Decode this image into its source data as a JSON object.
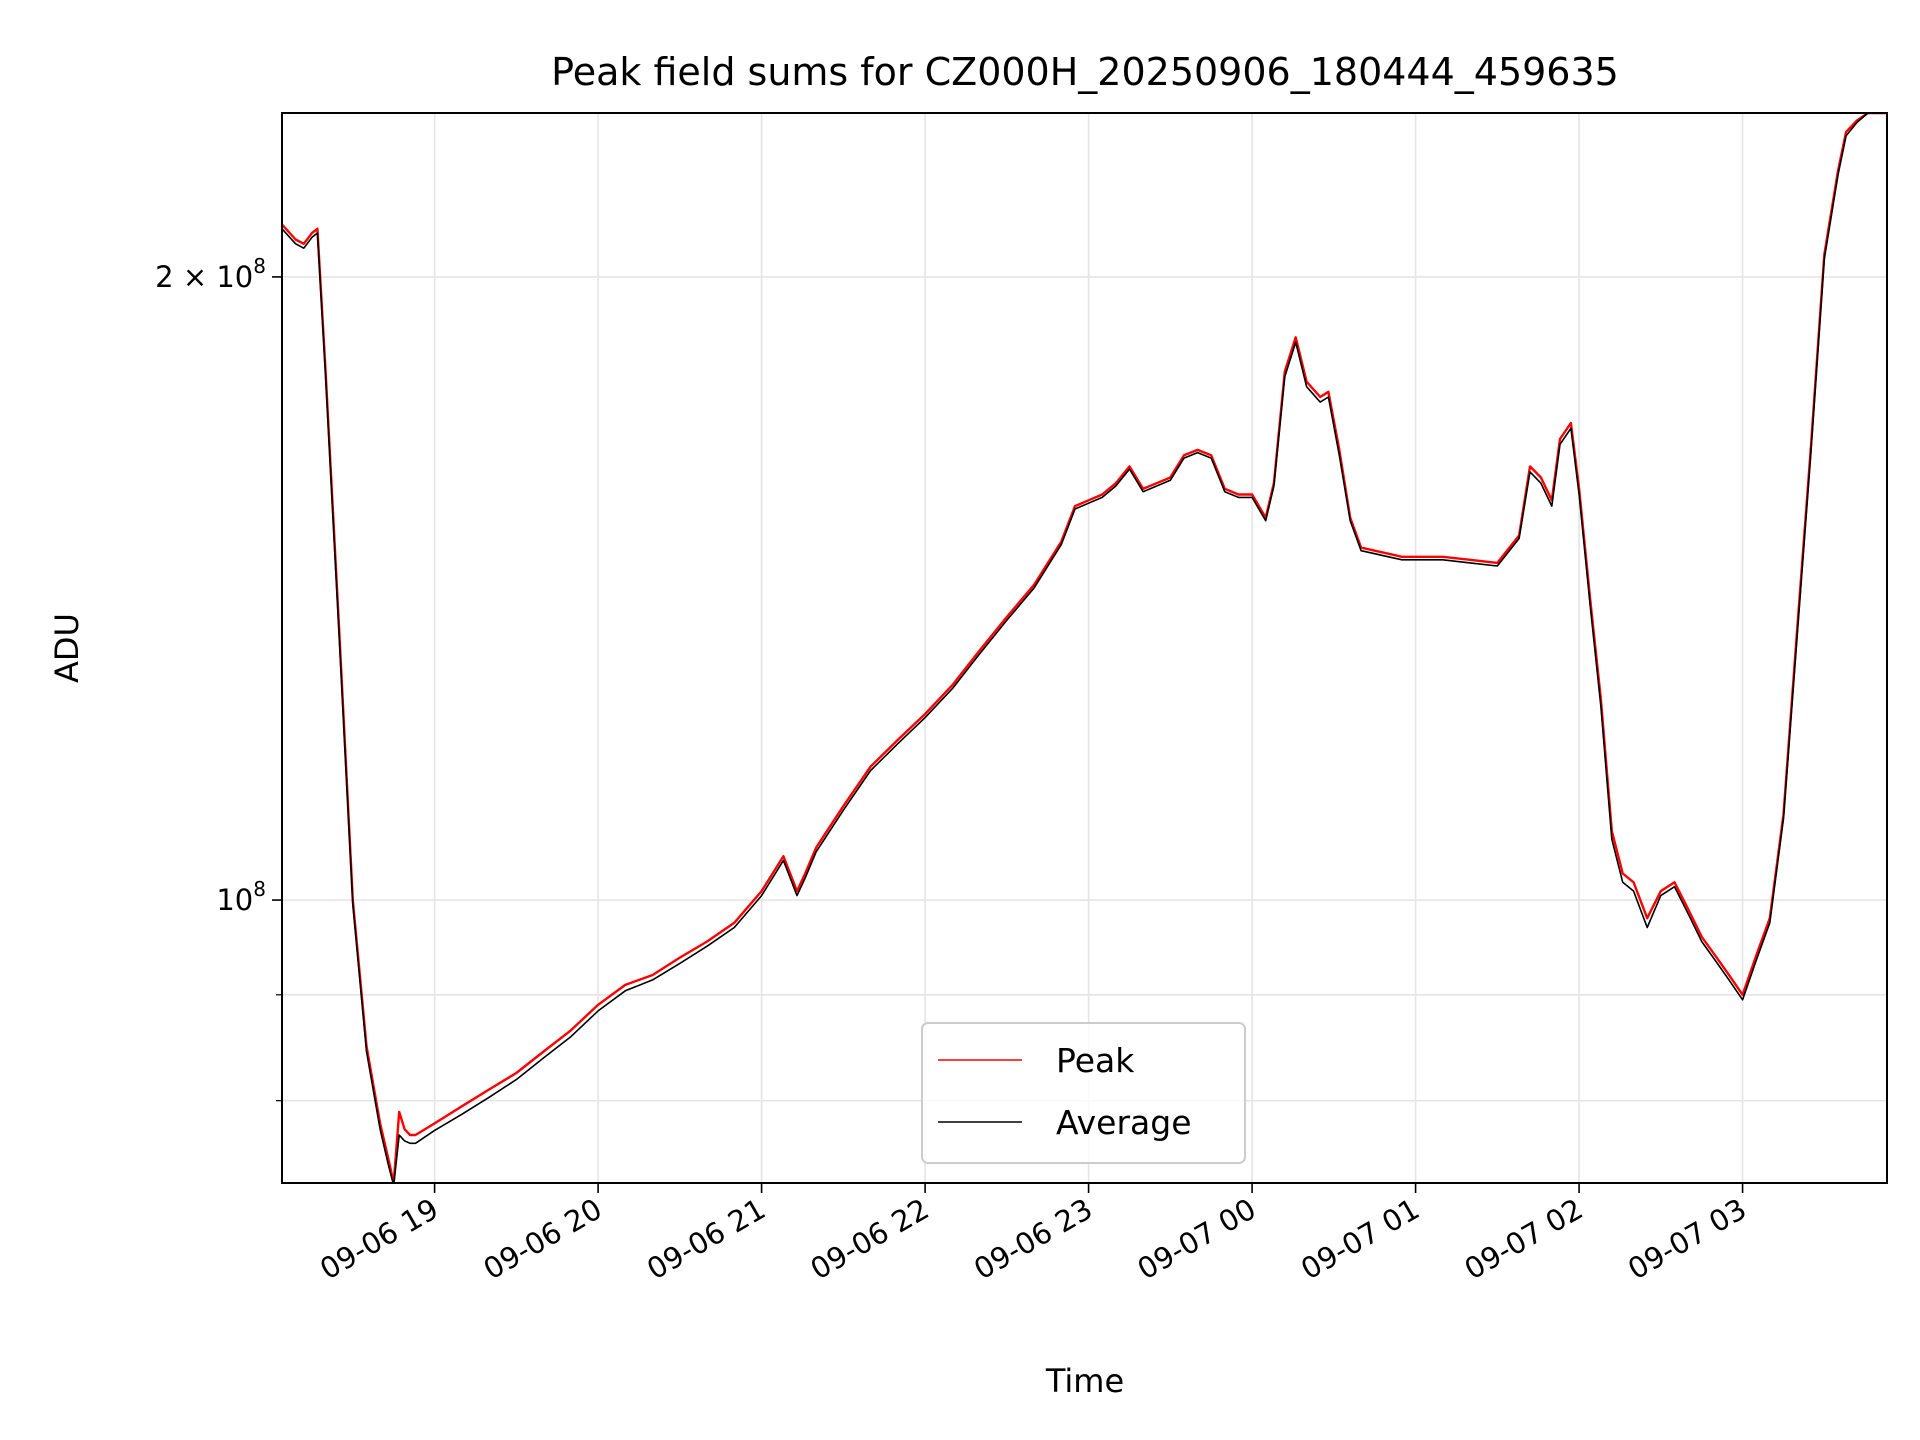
{
  "chart_data": {
    "type": "line",
    "title": "Peak field sums for CZ000H_20250906_180444_459635",
    "xlabel": "Time",
    "ylabel": "ADU",
    "yscale": "log",
    "grid": true,
    "legend_placement": "lower-center",
    "xlim": [
      "2025-09-06 18:04",
      "2025-09-07 03:53"
    ],
    "ylim": [
      73000000,
      240000000
    ],
    "x_ticks": [
      {
        "value": "2025-09-06 19:00",
        "label": "09-06 19"
      },
      {
        "value": "2025-09-06 20:00",
        "label": "09-06 20"
      },
      {
        "value": "2025-09-06 21:00",
        "label": "09-06 21"
      },
      {
        "value": "2025-09-06 22:00",
        "label": "09-06 22"
      },
      {
        "value": "2025-09-06 23:00",
        "label": "09-06 23"
      },
      {
        "value": "2025-09-07 00:00",
        "label": "09-07 00"
      },
      {
        "value": "2025-09-07 01:00",
        "label": "09-07 01"
      },
      {
        "value": "2025-09-07 02:00",
        "label": "09-07 02"
      },
      {
        "value": "2025-09-07 03:00",
        "label": "09-07 03"
      }
    ],
    "y_major_ticks": [
      {
        "value": 100000000,
        "mantissa": "",
        "base": "10",
        "exp": "8"
      },
      {
        "value": 200000000,
        "mantissa": "2 × ",
        "base": "10",
        "exp": "8"
      }
    ],
    "y_minor_ticks": [
      80000000,
      90000000
    ],
    "x": [
      "2025-09-06 18:04",
      "2025-09-06 18:09",
      "2025-09-06 18:12",
      "2025-09-06 18:15",
      "2025-09-06 18:17",
      "2025-09-06 18:20",
      "2025-09-06 18:25",
      "2025-09-06 18:30",
      "2025-09-06 18:35",
      "2025-09-06 18:40",
      "2025-09-06 18:43",
      "2025-09-06 18:45",
      "2025-09-06 18:47",
      "2025-09-06 18:49",
      "2025-09-06 18:51",
      "2025-09-06 18:53",
      "2025-09-06 19:00",
      "2025-09-06 19:10",
      "2025-09-06 19:20",
      "2025-09-06 19:30",
      "2025-09-06 19:40",
      "2025-09-06 19:50",
      "2025-09-06 20:00",
      "2025-09-06 20:10",
      "2025-09-06 20:20",
      "2025-09-06 20:30",
      "2025-09-06 20:40",
      "2025-09-06 20:50",
      "2025-09-06 21:00",
      "2025-09-06 21:08",
      "2025-09-06 21:13",
      "2025-09-06 21:16",
      "2025-09-06 21:20",
      "2025-09-06 21:30",
      "2025-09-06 21:40",
      "2025-09-06 21:50",
      "2025-09-06 22:00",
      "2025-09-06 22:10",
      "2025-09-06 22:20",
      "2025-09-06 22:30",
      "2025-09-06 22:40",
      "2025-09-06 22:50",
      "2025-09-06 22:55",
      "2025-09-06 23:00",
      "2025-09-06 23:05",
      "2025-09-06 23:10",
      "2025-09-06 23:15",
      "2025-09-06 23:20",
      "2025-09-06 23:25",
      "2025-09-06 23:30",
      "2025-09-06 23:35",
      "2025-09-06 23:40",
      "2025-09-06 23:45",
      "2025-09-06 23:50",
      "2025-09-06 23:55",
      "2025-09-07 00:00",
      "2025-09-07 00:05",
      "2025-09-07 00:08",
      "2025-09-07 00:12",
      "2025-09-07 00:16",
      "2025-09-07 00:20",
      "2025-09-07 00:25",
      "2025-09-07 00:28",
      "2025-09-07 00:32",
      "2025-09-07 00:36",
      "2025-09-07 00:40",
      "2025-09-07 00:45",
      "2025-09-07 00:50",
      "2025-09-07 00:55",
      "2025-09-07 01:00",
      "2025-09-07 01:10",
      "2025-09-07 01:20",
      "2025-09-07 01:30",
      "2025-09-07 01:38",
      "2025-09-07 01:42",
      "2025-09-07 01:46",
      "2025-09-07 01:50",
      "2025-09-07 01:53",
      "2025-09-07 01:57",
      "2025-09-07 02:00",
      "2025-09-07 02:04",
      "2025-09-07 02:08",
      "2025-09-07 02:12",
      "2025-09-07 02:16",
      "2025-09-07 02:20",
      "2025-09-07 02:25",
      "2025-09-07 02:30",
      "2025-09-07 02:35",
      "2025-09-07 02:40",
      "2025-09-07 02:45",
      "2025-09-07 02:50",
      "2025-09-07 02:55",
      "2025-09-07 03:00",
      "2025-09-07 03:05",
      "2025-09-07 03:10",
      "2025-09-07 03:15",
      "2025-09-07 03:20",
      "2025-09-07 03:25",
      "2025-09-07 03:30",
      "2025-09-07 03:35",
      "2025-09-07 03:38",
      "2025-09-07 03:42",
      "2025-09-07 03:46",
      "2025-09-07 03:53"
    ],
    "series": [
      {
        "name": "Peak",
        "color": "#ff0000",
        "values": [
          212000000,
          208500000,
          207500000,
          210000000,
          211000000,
          180000000,
          135000000,
          100000000,
          85000000,
          78000000,
          75000000,
          73000000,
          79000000,
          77500000,
          77000000,
          77000000,
          78000000,
          79500000,
          81000000,
          82500000,
          84500000,
          86500000,
          89000000,
          91000000,
          92000000,
          93800000,
          95500000,
          97500000,
          101000000,
          105000000,
          101000000,
          103000000,
          106000000,
          111000000,
          116000000,
          119500000,
          123000000,
          127000000,
          132000000,
          137000000,
          142000000,
          149000000,
          155000000,
          156000000,
          157000000,
          159000000,
          162000000,
          158000000,
          159000000,
          160000000,
          164000000,
          165000000,
          164000000,
          158000000,
          157000000,
          157000000,
          153000000,
          159000000,
          180000000,
          187000000,
          178000000,
          175000000,
          176000000,
          165000000,
          153000000,
          148000000,
          147500000,
          147000000,
          146500000,
          146500000,
          146500000,
          146000000,
          145500000,
          150000000,
          162000000,
          160000000,
          156000000,
          167000000,
          170000000,
          158000000,
          140000000,
          125000000,
          108000000,
          103000000,
          102000000,
          98000000,
          101000000,
          102000000,
          99000000,
          96000000,
          94000000,
          92000000,
          90000000,
          94000000,
          98000000,
          110000000,
          135000000,
          165000000,
          205000000,
          225000000,
          235000000,
          238000000,
          240000000,
          240000000
        ]
      },
      {
        "name": "Average",
        "color": "#000000",
        "values": [
          211000000,
          207500000,
          206500000,
          209000000,
          210000000,
          179000000,
          134000000,
          99500000,
          84500000,
          77500000,
          74500000,
          72800000,
          77000000,
          76500000,
          76300000,
          76300000,
          77400000,
          78800000,
          80300000,
          81900000,
          83900000,
          85900000,
          88400000,
          90400000,
          91500000,
          93200000,
          95000000,
          97000000,
          100500000,
          104500000,
          100500000,
          102500000,
          105500000,
          110500000,
          115500000,
          119000000,
          122500000,
          126500000,
          131500000,
          136500000,
          141500000,
          148500000,
          154500000,
          155500000,
          156500000,
          158500000,
          161500000,
          157500000,
          158500000,
          159500000,
          163500000,
          164500000,
          163500000,
          157500000,
          156500000,
          156500000,
          152500000,
          158500000,
          179000000,
          186000000,
          177000000,
          174000000,
          175000000,
          164000000,
          152500000,
          147500000,
          147000000,
          146500000,
          146000000,
          146000000,
          146000000,
          145500000,
          145000000,
          149500000,
          161000000,
          159000000,
          155000000,
          166000000,
          169000000,
          157000000,
          139000000,
          124000000,
          107000000,
          102000000,
          101000000,
          97000000,
          100500000,
          101500000,
          98500000,
          95500000,
          93500000,
          91500000,
          89500000,
          93500000,
          97500000,
          109500000,
          134000000,
          164000000,
          204000000,
          224000000,
          234000000,
          237500000,
          240000000,
          240000000
        ]
      }
    ]
  }
}
